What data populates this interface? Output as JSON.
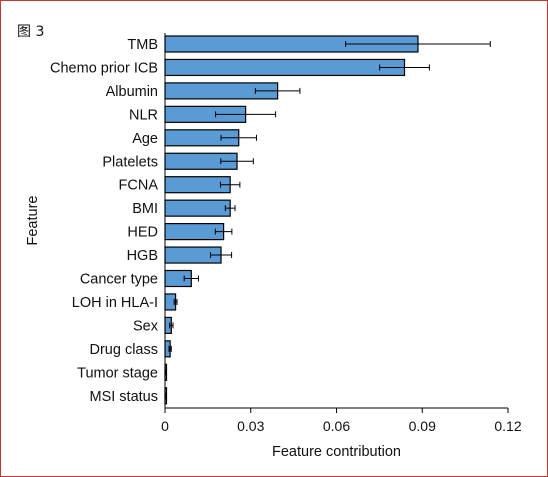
{
  "figure_label": "图 3",
  "chart_data": {
    "type": "bar",
    "orientation": "horizontal",
    "xlabel": "Feature contribution",
    "ylabel": "Feature",
    "xlim": [
      0,
      0.12
    ],
    "xticks": [
      0,
      0.03,
      0.06,
      0.09,
      0.12
    ],
    "xtick_labels": [
      "0",
      "0.03",
      "0.06",
      "0.09",
      "0.12"
    ],
    "error_bars": true,
    "grid": false,
    "bar_color": "#5b9bd5",
    "categories": [
      "TMB",
      "Chemo prior ICB",
      "Albumin",
      "NLR",
      "Age",
      "Platelets",
      "FCNA",
      "BMI",
      "HED",
      "HGB",
      "Cancer type",
      "LOH in HLA-I",
      "Sex",
      "Drug class",
      "Tumor stage",
      "MSI status"
    ],
    "values": [
      0.0885,
      0.0838,
      0.0394,
      0.0282,
      0.0258,
      0.0252,
      0.0228,
      0.0228,
      0.0205,
      0.0196,
      0.0092,
      0.0037,
      0.0022,
      0.0018,
      0.0004,
      0.0003
    ],
    "errors": [
      0.0253,
      0.0087,
      0.0078,
      0.0105,
      0.0062,
      0.0057,
      0.0034,
      0.0017,
      0.0029,
      0.0037,
      0.0025,
      0.0005,
      0.0006,
      0.0004,
      0.0001,
      0.0001
    ]
  }
}
